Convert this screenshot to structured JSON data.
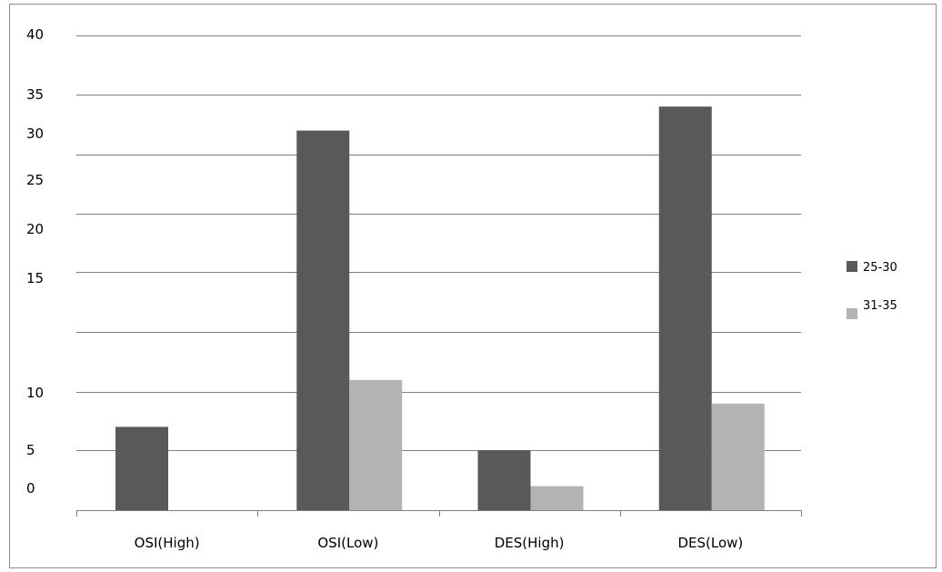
{
  "chart_data": {
    "type": "bar",
    "categories": [
      "OSI(High)",
      "OSI(Low)",
      "DES(High)",
      "DES(Low)"
    ],
    "series": [
      {
        "name": "25-30",
        "color": "#595959",
        "values": [
          7,
          32,
          5,
          34
        ]
      },
      {
        "name": "31-35",
        "color": "#b3b3b3",
        "values": [
          0,
          11,
          2,
          9
        ]
      }
    ],
    "ylim": [
      0,
      40
    ],
    "yticks": [
      {
        "label": "40",
        "value": 40
      },
      {
        "label": "35",
        "value": 35
      },
      {
        "label": "30",
        "value": 30
      },
      {
        "label": "25",
        "value": 25
      },
      {
        "label": "20",
        "value": 20
      },
      {
        "label": "15",
        "value": 15
      },
      {
        "label": "10",
        "value": 10
      },
      {
        "label": "5",
        "value": 5
      },
      {
        "label": "0",
        "value": 0
      }
    ],
    "title": "",
    "xlabel": "",
    "ylabel": "",
    "grid": true,
    "legend_position": "right"
  }
}
